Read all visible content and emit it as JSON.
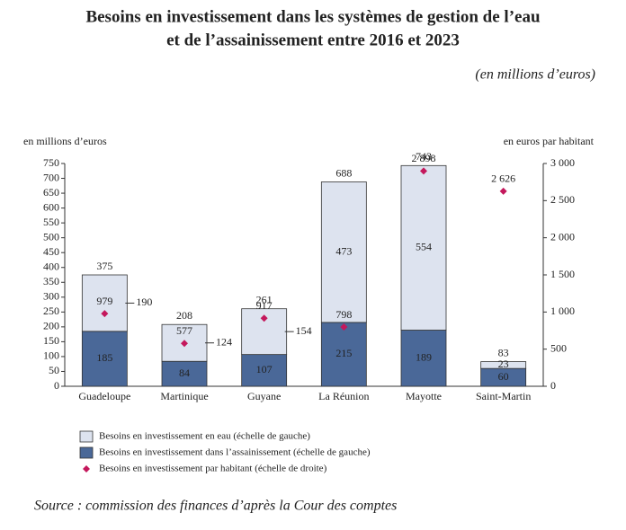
{
  "chart_data": {
    "type": "bar",
    "title": [
      "Besoins en investissement dans les systèmes de gestion de l’eau",
      "et de l’assainissement entre 2016 et 2023"
    ],
    "subtitle": "(en millions d’euros)",
    "ylabel": "en millions d’euros",
    "y2label": "en euros par habitant",
    "categories": [
      "Guadeloupe",
      "Martinique",
      "Guyane",
      "La Réunion",
      "Mayotte",
      "Saint-Martin"
    ],
    "series": [
      {
        "name": "Besoins en investissement en eau (échelle de gauche)",
        "color": "#dde3ef",
        "values": [
          190,
          124,
          154,
          473,
          554,
          23
        ]
      },
      {
        "name": "Besoins en investissement dans l’assainissement (échelle de gauche)",
        "color": "#4a6898",
        "values": [
          185,
          84,
          107,
          215,
          189,
          60
        ]
      },
      {
        "name": "Besoins en investissement par habitant (échelle de droite)",
        "color": "#c4185c",
        "axis": "y2",
        "marker": "diamond",
        "values": [
          979,
          577,
          917,
          798,
          2898,
          2626
        ],
        "value_labels": [
          "979",
          "577",
          "917",
          "798",
          "2 898",
          "2 626"
        ]
      }
    ],
    "total_labels": [
      375,
      208,
      261,
      688,
      743,
      83
    ],
    "ylim": [
      0,
      750
    ],
    "yticks": [
      0,
      50,
      100,
      150,
      200,
      250,
      300,
      350,
      400,
      450,
      500,
      550,
      600,
      650,
      700,
      750
    ],
    "y2lim": [
      0,
      3000
    ],
    "y2ticks": [
      0,
      500,
      {
        "value": 1000,
        "label": "1 000"
      },
      {
        "value": 1500,
        "label": "1 500"
      },
      {
        "value": 2000,
        "label": "2 000"
      },
      {
        "value": 2500,
        "label": "2 500"
      },
      {
        "value": 3000,
        "label": "3 000"
      }
    ],
    "source": "Source : commission des finances d’après la Cour des comptes"
  }
}
